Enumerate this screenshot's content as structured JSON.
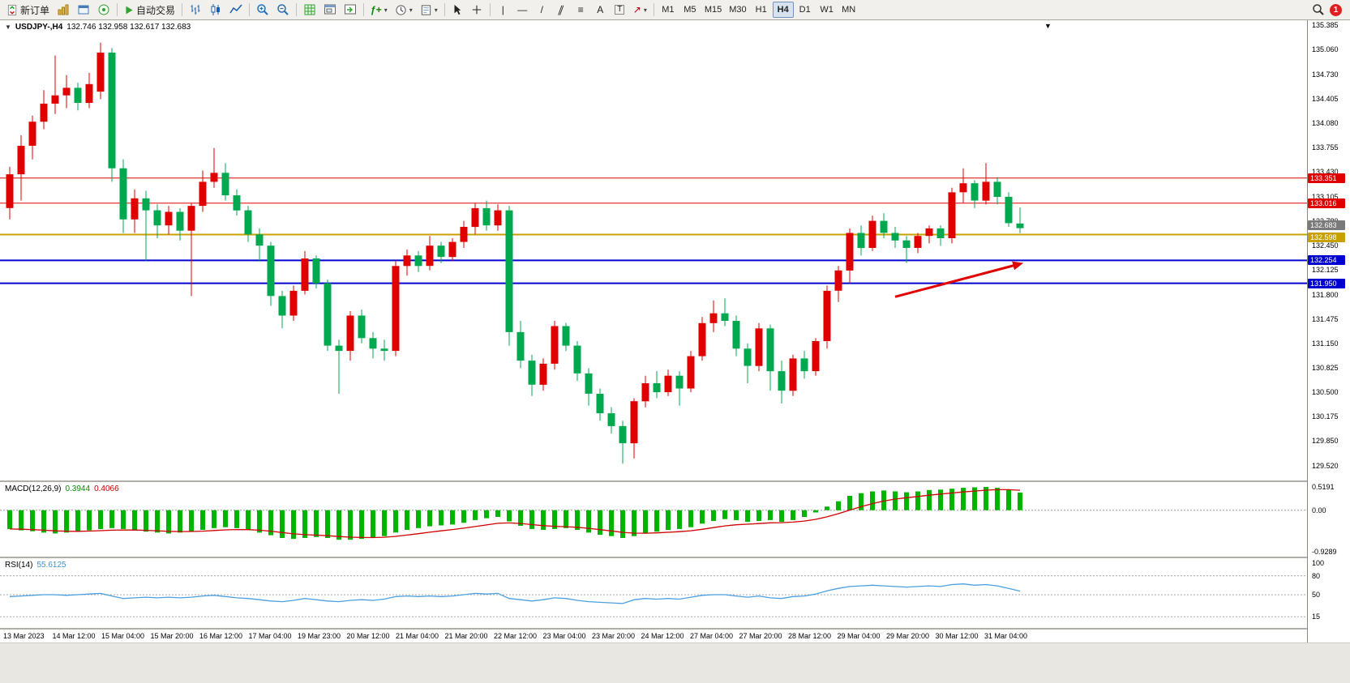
{
  "toolbar": {
    "new_order": "新订单",
    "auto_trading": "自动交易",
    "timeframes": [
      "M1",
      "M5",
      "M15",
      "M30",
      "H1",
      "H4",
      "D1",
      "W1",
      "MN"
    ],
    "active_timeframe": "H4",
    "notification_count": "1"
  },
  "icons": {
    "caret": "▾",
    "chart_caret": "▼",
    "title_caret": "▼",
    "vline": "|",
    "hline": "—",
    "trendline": "/",
    "channel": "∥",
    "fibo": "≡",
    "text_tool": "A",
    "label_tool": "T",
    "arrows_tool": "↗",
    "fplus": "ƒ+"
  },
  "chart": {
    "title": "USDJPY-,H4",
    "ohlc": "132.746 132.958 132.617 132.683"
  },
  "macd": {
    "label": "MACD(12,26,9)",
    "value_main": "0.3944",
    "value_signal": "0.4066",
    "scale": [
      "0.5191",
      "0.00",
      "-0.9289"
    ]
  },
  "rsi": {
    "label": "RSI(14)",
    "value": "55.6125",
    "scale": [
      "100",
      "80",
      "50",
      "15"
    ]
  },
  "chart_data": {
    "type": "candlestick",
    "symbol": "USDJPY-",
    "timeframe": "H4",
    "current_ohlc": {
      "open": 132.746,
      "high": 132.958,
      "low": 132.617,
      "close": 132.683
    },
    "colors": {
      "bull": "#e00000",
      "bear": "#00a84f",
      "macd_hist": "#00b400",
      "macd_signal": "#d00000",
      "rsi_line": "#4aa0e0",
      "red_line": "#e00000",
      "gold_line": "#c8a000",
      "blue_line": "#0000d0",
      "current_tag": "#7a7a7a"
    },
    "price_axis": {
      "max": 135.385,
      "min": 129.52,
      "labels": [
        "135.385",
        "135.060",
        "134.730",
        "134.405",
        "134.080",
        "133.755",
        "133.430",
        "133.105",
        "132.780",
        "132.450",
        "132.125",
        "131.800",
        "131.475",
        "131.150",
        "130.825",
        "130.500",
        "130.175",
        "129.850",
        "129.520"
      ]
    },
    "hlines": [
      {
        "price": 133.351,
        "label": "133.351",
        "color": "#e00000",
        "width": 1
      },
      {
        "price": 133.016,
        "label": "133.016",
        "color": "#e00000",
        "width": 1
      },
      {
        "price": 132.598,
        "label": "132.598",
        "color": "#c8a000",
        "width": 2
      },
      {
        "price": 132.254,
        "label": "132.254",
        "color": "#0000d0",
        "width": 2
      },
      {
        "price": 131.95,
        "label": "131.950",
        "color": "#0000d0",
        "width": 2
      }
    ],
    "current_price_tag": {
      "value": "132.683"
    },
    "arrow": {
      "from_bar": 78,
      "from_price": 131.77,
      "to_bar": 89.3,
      "to_price": 132.22,
      "color": "#e00000"
    },
    "candles": [
      [
        132.95,
        133.5,
        132.8,
        133.4
      ],
      [
        133.4,
        133.92,
        133.05,
        133.78
      ],
      [
        133.78,
        134.18,
        133.6,
        134.1
      ],
      [
        134.1,
        134.52,
        134.0,
        134.34
      ],
      [
        134.34,
        134.98,
        134.2,
        134.45
      ],
      [
        134.45,
        134.72,
        134.28,
        134.55
      ],
      [
        134.55,
        134.62,
        134.25,
        134.35
      ],
      [
        134.35,
        134.75,
        134.28,
        134.6
      ],
      [
        134.5,
        135.15,
        134.4,
        135.02
      ],
      [
        135.02,
        135.08,
        133.3,
        133.48
      ],
      [
        133.48,
        133.6,
        132.62,
        132.8
      ],
      [
        132.8,
        133.2,
        132.62,
        133.08
      ],
      [
        133.08,
        133.18,
        132.25,
        132.92
      ],
      [
        132.92,
        133.0,
        132.55,
        132.72
      ],
      [
        132.72,
        132.98,
        132.6,
        132.9
      ],
      [
        132.9,
        132.95,
        132.52,
        132.65
      ],
      [
        132.65,
        133.02,
        131.78,
        132.98
      ],
      [
        132.98,
        133.45,
        132.9,
        133.3
      ],
      [
        133.3,
        133.75,
        133.22,
        133.42
      ],
      [
        133.42,
        133.55,
        133.05,
        133.12
      ],
      [
        133.12,
        133.2,
        132.85,
        132.92
      ],
      [
        132.92,
        132.98,
        132.5,
        132.6
      ],
      [
        132.6,
        132.68,
        132.24,
        132.45
      ],
      [
        132.45,
        132.5,
        131.65,
        131.78
      ],
      [
        131.78,
        131.85,
        131.35,
        131.52
      ],
      [
        131.52,
        131.92,
        131.45,
        131.85
      ],
      [
        131.85,
        132.38,
        131.8,
        132.28
      ],
      [
        132.28,
        132.32,
        131.88,
        131.95
      ],
      [
        131.95,
        132.0,
        131.05,
        131.12
      ],
      [
        131.12,
        131.2,
        130.48,
        131.05
      ],
      [
        131.05,
        131.58,
        130.92,
        131.52
      ],
      [
        131.52,
        131.6,
        131.15,
        131.22
      ],
      [
        131.22,
        131.3,
        130.95,
        131.08
      ],
      [
        131.08,
        131.2,
        130.92,
        131.05
      ],
      [
        131.05,
        132.25,
        130.98,
        132.18
      ],
      [
        132.18,
        132.4,
        132.05,
        132.32
      ],
      [
        132.32,
        132.38,
        132.1,
        132.18
      ],
      [
        132.18,
        132.58,
        132.12,
        132.45
      ],
      [
        132.45,
        132.5,
        132.22,
        132.3
      ],
      [
        132.3,
        132.55,
        132.25,
        132.5
      ],
      [
        132.5,
        132.78,
        132.42,
        132.7
      ],
      [
        132.7,
        133.02,
        132.6,
        132.95
      ],
      [
        132.95,
        133.05,
        132.65,
        132.72
      ],
      [
        132.72,
        133.0,
        132.65,
        132.92
      ],
      [
        132.92,
        132.98,
        131.12,
        131.3
      ],
      [
        131.3,
        131.45,
        130.82,
        130.92
      ],
      [
        130.92,
        131.0,
        130.45,
        130.6
      ],
      [
        130.6,
        130.95,
        130.52,
        130.88
      ],
      [
        130.88,
        131.45,
        130.8,
        131.38
      ],
      [
        131.38,
        131.42,
        131.05,
        131.12
      ],
      [
        131.12,
        131.18,
        130.65,
        130.75
      ],
      [
        130.75,
        130.82,
        130.32,
        130.48
      ],
      [
        130.48,
        130.55,
        130.12,
        130.22
      ],
      [
        130.22,
        130.3,
        129.95,
        130.05
      ],
      [
        130.05,
        130.12,
        129.55,
        129.82
      ],
      [
        129.82,
        130.42,
        129.62,
        130.38
      ],
      [
        130.38,
        130.72,
        130.3,
        130.62
      ],
      [
        130.62,
        130.78,
        130.42,
        130.5
      ],
      [
        130.5,
        130.8,
        130.45,
        130.72
      ],
      [
        130.72,
        130.78,
        130.32,
        130.55
      ],
      [
        130.55,
        131.05,
        130.5,
        130.98
      ],
      [
        130.98,
        131.5,
        130.92,
        131.42
      ],
      [
        131.42,
        131.72,
        131.3,
        131.55
      ],
      [
        131.55,
        131.75,
        131.38,
        131.45
      ],
      [
        131.45,
        131.52,
        130.98,
        131.08
      ],
      [
        131.08,
        131.15,
        130.62,
        130.85
      ],
      [
        130.85,
        131.42,
        130.78,
        131.35
      ],
      [
        131.35,
        131.4,
        130.52,
        130.78
      ],
      [
        130.78,
        130.92,
        130.35,
        130.52
      ],
      [
        130.52,
        131.0,
        130.45,
        130.95
      ],
      [
        130.95,
        131.05,
        130.68,
        130.78
      ],
      [
        130.78,
        131.22,
        130.72,
        131.18
      ],
      [
        131.18,
        131.92,
        131.08,
        131.85
      ],
      [
        131.85,
        132.18,
        131.7,
        132.12
      ],
      [
        132.12,
        132.68,
        131.95,
        132.62
      ],
      [
        132.62,
        132.72,
        132.32,
        132.42
      ],
      [
        132.42,
        132.85,
        132.38,
        132.78
      ],
      [
        132.78,
        132.88,
        132.55,
        132.62
      ],
      [
        132.62,
        132.7,
        132.42,
        132.52
      ],
      [
        132.52,
        132.58,
        132.22,
        132.42
      ],
      [
        132.42,
        132.62,
        132.35,
        132.58
      ],
      [
        132.58,
        132.72,
        132.48,
        132.68
      ],
      [
        132.68,
        132.72,
        132.45,
        132.55
      ],
      [
        132.55,
        133.22,
        132.48,
        133.16
      ],
      [
        133.16,
        133.48,
        133.02,
        133.28
      ],
      [
        133.28,
        133.32,
        132.95,
        133.05
      ],
      [
        133.05,
        133.55,
        133.0,
        133.3
      ],
      [
        133.3,
        133.36,
        133.0,
        133.1
      ],
      [
        133.1,
        133.16,
        132.7,
        132.75
      ],
      [
        132.746,
        132.958,
        132.617,
        132.683
      ]
    ],
    "macd": {
      "params": [
        12,
        26,
        9
      ],
      "scale_max": 0.5191,
      "scale_min": -0.9289,
      "main": [
        -0.42,
        -0.45,
        -0.47,
        -0.5,
        -0.52,
        -0.5,
        -0.48,
        -0.45,
        -0.42,
        -0.4,
        -0.42,
        -0.45,
        -0.48,
        -0.5,
        -0.52,
        -0.5,
        -0.47,
        -0.44,
        -0.4,
        -0.38,
        -0.4,
        -0.44,
        -0.5,
        -0.56,
        -0.62,
        -0.64,
        -0.62,
        -0.6,
        -0.62,
        -0.66,
        -0.66,
        -0.64,
        -0.62,
        -0.58,
        -0.5,
        -0.44,
        -0.4,
        -0.36,
        -0.34,
        -0.32,
        -0.28,
        -0.22,
        -0.18,
        -0.15,
        -0.25,
        -0.35,
        -0.42,
        -0.44,
        -0.42,
        -0.4,
        -0.44,
        -0.5,
        -0.55,
        -0.58,
        -0.62,
        -0.58,
        -0.52,
        -0.48,
        -0.44,
        -0.42,
        -0.38,
        -0.3,
        -0.24,
        -0.2,
        -0.22,
        -0.26,
        -0.24,
        -0.22,
        -0.26,
        -0.22,
        -0.15,
        -0.05,
        0.08,
        0.2,
        0.32,
        0.38,
        0.42,
        0.44,
        0.42,
        0.4,
        0.42,
        0.45,
        0.46,
        0.48,
        0.5,
        0.51,
        0.52,
        0.5,
        0.46,
        0.3944
      ]
    },
    "rsi": {
      "period": 14,
      "levels": [
        80,
        50,
        15
      ],
      "values": [
        47,
        48,
        49,
        50,
        50,
        49,
        50,
        51,
        52,
        48,
        44,
        45,
        46,
        45,
        46,
        45,
        46,
        48,
        49,
        47,
        45,
        44,
        42,
        40,
        39,
        41,
        44,
        42,
        40,
        39,
        41,
        42,
        41,
        43,
        47,
        48,
        47,
        48,
        47,
        48,
        50,
        52,
        51,
        52,
        44,
        42,
        40,
        42,
        45,
        44,
        41,
        39,
        38,
        37,
        36,
        42,
        44,
        43,
        44,
        43,
        46,
        49,
        50,
        50,
        48,
        46,
        48,
        45,
        44,
        47,
        48,
        51,
        56,
        60,
        63,
        64,
        65,
        64,
        63,
        62,
        63,
        64,
        63,
        66,
        67,
        65,
        66,
        64,
        60,
        55.6125
      ]
    },
    "time_axis": [
      "13 Mar 2023",
      "14 Mar 12:00",
      "15 Mar 04:00",
      "15 Mar 20:00",
      "16 Mar 12:00",
      "17 Mar 04:00",
      "19 Mar 23:00",
      "20 Mar 12:00",
      "21 Mar 04:00",
      "21 Mar 20:00",
      "22 Mar 12:00",
      "23 Mar 04:00",
      "23 Mar 20:00",
      "24 Mar 12:00",
      "27 Mar 04:00",
      "27 Mar 20:00",
      "28 Mar 12:00",
      "29 Mar 04:00",
      "29 Mar 20:00",
      "30 Mar 12:00",
      "31 Mar 04:00"
    ]
  }
}
